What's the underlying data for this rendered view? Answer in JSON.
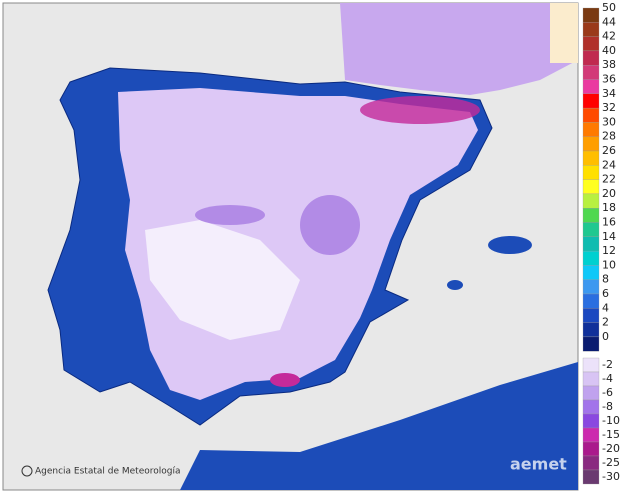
{
  "credit": "Agencia Estatal de Meteorología",
  "watermark": "aemet",
  "legend": {
    "entries": [
      {
        "label": "50",
        "color": "#7a3a12"
      },
      {
        "label": "44",
        "color": "#9a3a1a"
      },
      {
        "label": "42",
        "color": "#b0302a"
      },
      {
        "label": "40",
        "color": "#c02a50"
      },
      {
        "label": "38",
        "color": "#d23a78"
      },
      {
        "label": "36",
        "color": "#ea3aa0"
      },
      {
        "label": "34",
        "color": "#ff0000"
      },
      {
        "label": "32",
        "color": "#ff4a00"
      },
      {
        "label": "30",
        "color": "#ff7a00"
      },
      {
        "label": "28",
        "color": "#ff9e00"
      },
      {
        "label": "26",
        "color": "#ffbe00"
      },
      {
        "label": "24",
        "color": "#ffe000"
      },
      {
        "label": "22",
        "color": "#ffff20"
      },
      {
        "label": "20",
        "color": "#b8f040"
      },
      {
        "label": "18",
        "color": "#50d850"
      },
      {
        "label": "16",
        "color": "#20c890"
      },
      {
        "label": "14",
        "color": "#10bcb0"
      },
      {
        "label": "12",
        "color": "#00d0d0"
      },
      {
        "label": "10",
        "color": "#10c8f8"
      },
      {
        "label": "8",
        "color": "#3c98f0"
      },
      {
        "label": "6",
        "color": "#2a6ee0"
      },
      {
        "label": "4",
        "color": "#1a48c0"
      },
      {
        "label": "2",
        "color": "#10309a"
      },
      {
        "label": "0",
        "color": "#0a1c70"
      },
      {
        "label": "-2",
        "color": "#ece2fa"
      },
      {
        "label": "-4",
        "color": "#d8c4f4"
      },
      {
        "label": "-6",
        "color": "#c0a2ee"
      },
      {
        "label": "-8",
        "color": "#a274ea"
      },
      {
        "label": "-10",
        "color": "#8a48e0"
      },
      {
        "label": "-15",
        "color": "#cc2aae"
      },
      {
        "label": "-20",
        "color": "#aa1a8c"
      },
      {
        "label": "-25",
        "color": "#8a2a80"
      },
      {
        "label": "-30",
        "color": "#6a3a70"
      }
    ]
  }
}
